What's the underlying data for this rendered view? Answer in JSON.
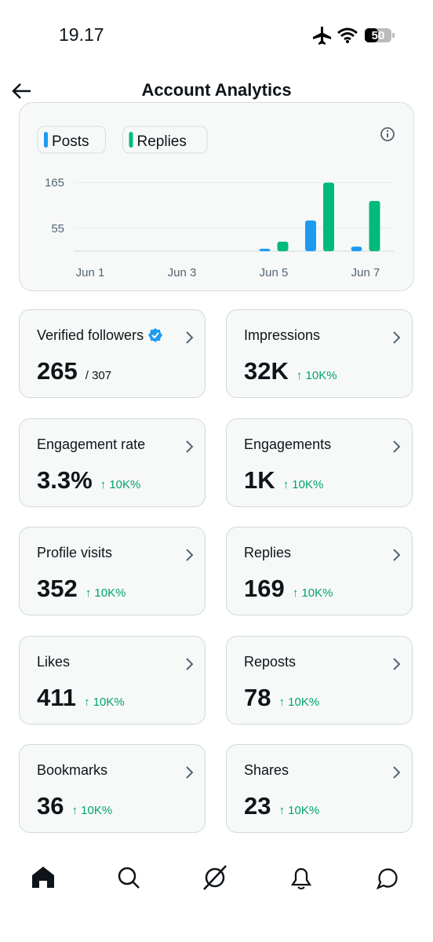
{
  "status_bar": {
    "time": "19.17",
    "battery": "50"
  },
  "header": {
    "title": "Account Analytics"
  },
  "chart_data": {
    "type": "bar",
    "categories": [
      "Jun 1",
      null,
      "Jun 3",
      null,
      "Jun 5",
      null,
      "Jun 7"
    ],
    "series": [
      {
        "name": "Posts",
        "color": "#1d9bf0",
        "values": [
          0,
          0,
          0,
          0,
          6,
          74,
          11
        ]
      },
      {
        "name": "Replies",
        "color": "#00ba7c",
        "values": [
          0,
          0,
          0,
          0,
          23,
          165,
          121
        ]
      }
    ],
    "ylim": [
      0,
      170
    ],
    "yticks": [
      55,
      165
    ],
    "grid": true
  },
  "cards": [
    {
      "label": "Verified followers",
      "value": "265",
      "total": "/ 307"
    },
    {
      "label": "Impressions",
      "value": "32K",
      "change": "↑ 10K%"
    },
    {
      "label": "Engagement rate",
      "value": "3.3%",
      "change": "↑ 10K%"
    },
    {
      "label": "Engagements",
      "value": "1K",
      "change": "↑ 10K%"
    },
    {
      "label": "Profile visits",
      "value": "352",
      "change": "↑ 10K%"
    },
    {
      "label": "Replies",
      "value": "169",
      "change": "↑ 10K%"
    },
    {
      "label": "Likes",
      "value": "411",
      "change": "↑ 10K%"
    },
    {
      "label": "Reposts",
      "value": "78",
      "change": "↑ 10K%"
    },
    {
      "label": "Bookmarks",
      "value": "36",
      "change": "↑ 10K%"
    },
    {
      "label": "Shares",
      "value": "23",
      "change": "↑ 10K%"
    }
  ]
}
